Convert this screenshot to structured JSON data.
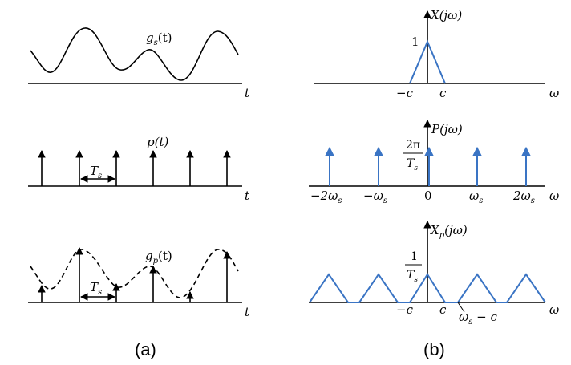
{
  "panel_a": {
    "caption": "(a)",
    "g_s": {
      "name": "g",
      "sub": "s",
      "arg": "(t)",
      "axis": "t"
    },
    "p": {
      "label": "p(t)",
      "axis": "t",
      "period_name": "T",
      "period_sub": "s"
    },
    "g_p": {
      "name": "g",
      "sub": "p",
      "arg": "(t)",
      "axis": "t",
      "period_name": "T",
      "period_sub": "s"
    }
  },
  "panel_b": {
    "caption": "(b)",
    "X": {
      "label": "X(jω)",
      "peak": "1",
      "axis": "ω",
      "tick_left": "−c",
      "tick_right": "c"
    },
    "P": {
      "label": "P(jω)",
      "height_num": "2π",
      "height_den_name": "T",
      "height_den_sub": "s",
      "axis": "ω",
      "ticks": [
        {
          "pre": "−2ω",
          "sub": "s"
        },
        {
          "pre": "−ω",
          "sub": "s"
        },
        {
          "pre": "0",
          "sub": ""
        },
        {
          "pre": "ω",
          "sub": "s"
        },
        {
          "pre": "2ω",
          "sub": "s"
        }
      ]
    },
    "Xp": {
      "name": "X",
      "sub": "p",
      "arg": "(jω)",
      "height_num": "1",
      "height_den_name": "T",
      "height_den_sub": "s",
      "axis": "ω",
      "tick_left": "−c",
      "tick_right": "c",
      "tick_shift_name": "ω",
      "tick_shift_sub": "s",
      "tick_shift_rest": " − c"
    }
  },
  "colors": {
    "signal": "#000000",
    "spectrum": "#3a74c4"
  }
}
